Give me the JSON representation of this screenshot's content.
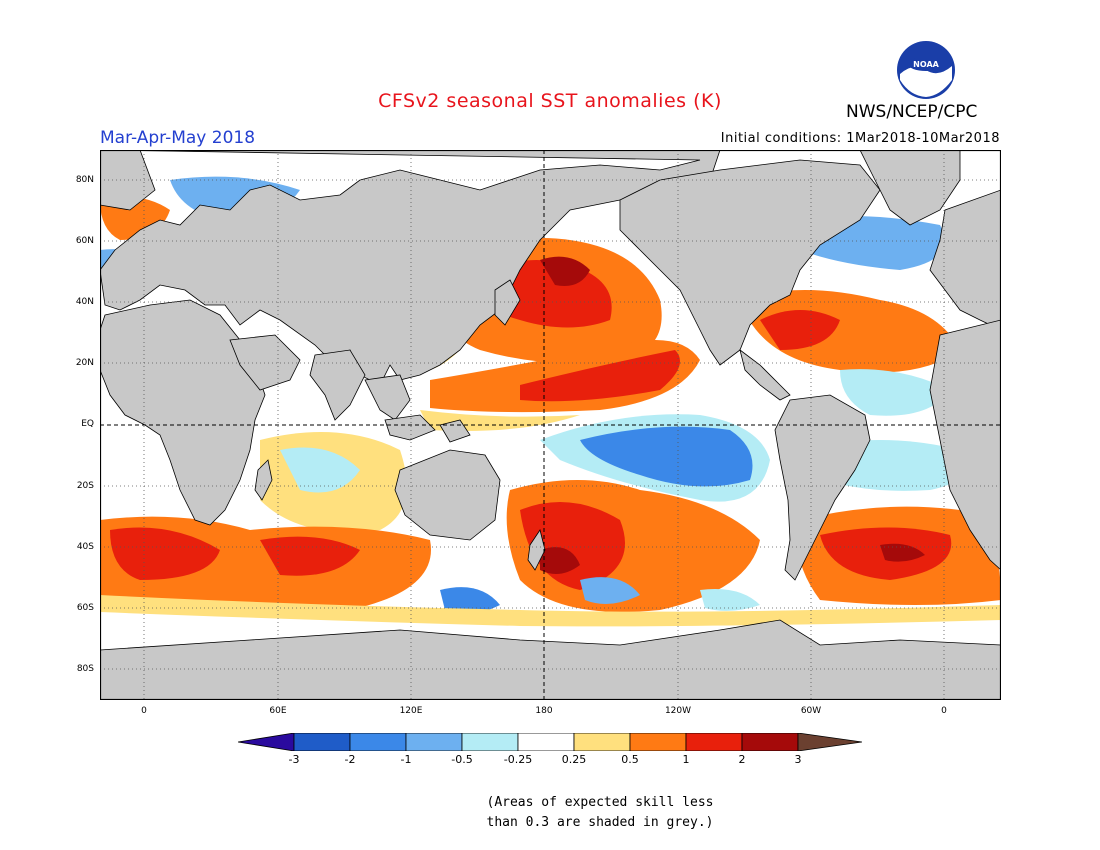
{
  "header": {
    "title": "CFSv2 seasonal SST anomalies (K)",
    "agency": "NWS/NCEP/CPC",
    "logo_text": "NOAA",
    "season": "Mar-Apr-May 2018",
    "initial_conditions": "Initial conditions: 1Mar2018-10Mar2018"
  },
  "map": {
    "lat_labels": [
      "80N",
      "60N",
      "40N",
      "20N",
      "EQ",
      "20S",
      "40S",
      "60S",
      "80S"
    ],
    "lon_labels": [
      "0",
      "60E",
      "120E",
      "180",
      "120W",
      "60W",
      "0"
    ],
    "land_color": "#c8c8c8",
    "ocean_color": "#ffffff"
  },
  "colorbar": {
    "labels": [
      "-3",
      "-2",
      "-1",
      "-0.5",
      "-0.25",
      "0.25",
      "0.5",
      "1",
      "2",
      "3"
    ],
    "colors": [
      "#2a0a9e",
      "#1f5cc8",
      "#3b88e8",
      "#6db0f0",
      "#b4ecf5",
      "#ffffff",
      "#ffe07e",
      "#ff7a14",
      "#e8200c",
      "#a50a0a",
      "#6b4030"
    ]
  },
  "note": {
    "line1": "(Areas of expected skill less",
    "line2": "than 0.3 are shaded in grey.)"
  }
}
